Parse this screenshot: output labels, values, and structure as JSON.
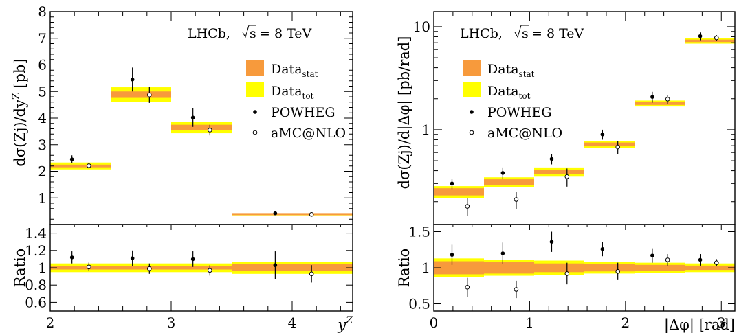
{
  "colors": {
    "stat": "#f79a3c",
    "tot": "#ffff00",
    "points": "#000000"
  },
  "legend": {
    "experiment": "LHCb,",
    "energy_prefix": "s",
    "energy_value": "= 8 TeV",
    "entries": [
      {
        "label": "Data",
        "sub": "stat",
        "style": "stat-box"
      },
      {
        "label": "Data",
        "sub": "tot",
        "style": "tot-box"
      },
      {
        "label": "POWHEG",
        "sub": "",
        "style": "filled-marker"
      },
      {
        "label": "aMC@NLO",
        "sub": "",
        "style": "open-marker"
      }
    ]
  },
  "chart_data": [
    {
      "type": "scatter",
      "panel": "left",
      "xlabel": "y",
      "xlabel_sup": "Z",
      "ylabel": "dσ(Zj)/dy",
      "ylabel_sup": "Z",
      "ylabel_unit": "[pb]",
      "ratio_ylabel": "Ratio",
      "xlim": [
        2.0,
        4.5
      ],
      "ylim": [
        0,
        8
      ],
      "yscale": "linear",
      "ratio_ylim": [
        0.5,
        1.5
      ],
      "x_ticks": [
        "2",
        "3",
        "4"
      ],
      "y_ticks": [
        "1",
        "2",
        "3",
        "4",
        "5",
        "6",
        "7",
        "8"
      ],
      "ratio_ticks": [
        "0.6",
        "0.8",
        "1",
        "1.2",
        "1.4"
      ],
      "bins": [
        [
          2.0,
          2.5
        ],
        [
          2.5,
          3.0
        ],
        [
          3.0,
          3.5
        ],
        [
          3.5,
          4.5
        ]
      ],
      "data": {
        "values": [
          2.2,
          4.88,
          3.65,
          0.39
        ],
        "stat_err": [
          0.05,
          0.12,
          0.1,
          0.02
        ],
        "tot_err": [
          0.13,
          0.28,
          0.22,
          0.03
        ]
      },
      "series": [
        {
          "name": "POWHEG",
          "marker": "filled",
          "x": [
            2.18,
            2.68,
            3.18,
            3.86
          ],
          "values": [
            2.45,
            5.45,
            4.02,
            0.42
          ],
          "err": [
            0.15,
            0.45,
            0.35,
            0.02
          ]
        },
        {
          "name": "aMC@NLO",
          "marker": "open",
          "x": [
            2.32,
            2.82,
            3.32,
            4.16
          ],
          "values": [
            2.21,
            4.87,
            3.55,
            0.38
          ],
          "err": [
            0.1,
            0.3,
            0.2,
            0.02
          ]
        }
      ],
      "ratio": {
        "data_stat_err": [
          0.02,
          0.02,
          0.02,
          0.04
        ],
        "data_tot_err": [
          0.05,
          0.05,
          0.05,
          0.07
        ],
        "series": [
          {
            "name": "POWHEG",
            "values": [
              1.12,
              1.11,
              1.1,
              1.03
            ],
            "err": [
              0.07,
              0.09,
              0.09,
              0.16
            ]
          },
          {
            "name": "aMC@NLO",
            "values": [
              1.01,
              0.99,
              0.97,
              0.93
            ],
            "err": [
              0.05,
              0.06,
              0.06,
              0.1
            ]
          }
        ]
      }
    },
    {
      "type": "scatter",
      "panel": "right",
      "xlabel": "|Δφ| [rad]",
      "ylabel": "dσ(Zj)/d|Δφ| [pb/rad]",
      "ratio_ylabel": "Ratio",
      "xlim": [
        0,
        3.1416
      ],
      "ylim": [
        0.12,
        14
      ],
      "yscale": "log",
      "ratio_ylim": [
        0.4,
        1.6
      ],
      "x_ticks": [
        "0",
        "1",
        "2",
        "3"
      ],
      "y_ticks": [
        "1",
        "10"
      ],
      "ratio_ticks": [
        "0.5",
        "1",
        "1.5"
      ],
      "bins": [
        [
          0,
          0.5236
        ],
        [
          0.5236,
          1.0472
        ],
        [
          1.0472,
          1.5708
        ],
        [
          1.5708,
          2.0944
        ],
        [
          2.0944,
          2.618
        ],
        [
          2.618,
          3.1416
        ]
      ],
      "data": {
        "values": [
          0.25,
          0.31,
          0.39,
          0.72,
          1.8,
          7.3
        ],
        "stat_err": [
          0.02,
          0.02,
          0.02,
          0.03,
          0.06,
          0.2
        ],
        "tot_err": [
          0.033,
          0.035,
          0.04,
          0.06,
          0.12,
          0.45
        ]
      },
      "series": [
        {
          "name": "POWHEG",
          "marker": "filled",
          "x": [
            0.19,
            0.72,
            1.23,
            1.76,
            2.28,
            2.78
          ],
          "values": [
            0.3,
            0.38,
            0.52,
            0.9,
            2.08,
            8.1
          ],
          "err": [
            0.035,
            0.05,
            0.06,
            0.1,
            0.25,
            0.7
          ]
        },
        {
          "name": "aMC@NLO",
          "marker": "open",
          "x": [
            0.35,
            0.86,
            1.39,
            1.92,
            2.44,
            2.95
          ],
          "values": [
            0.18,
            0.21,
            0.35,
            0.68,
            1.98,
            7.8
          ],
          "err": [
            0.035,
            0.04,
            0.07,
            0.1,
            0.2,
            0.5
          ]
        }
      ],
      "ratio": {
        "data_stat_err": [
          0.09,
          0.08,
          0.06,
          0.05,
          0.04,
          0.03
        ],
        "data_tot_err": [
          0.13,
          0.11,
          0.1,
          0.08,
          0.07,
          0.06
        ],
        "series": [
          {
            "name": "POWHEG",
            "values": [
              1.18,
              1.2,
              1.36,
              1.26,
              1.17,
              1.11
            ],
            "err": [
              0.14,
              0.15,
              0.14,
              0.1,
              0.1,
              0.08
            ]
          },
          {
            "name": "aMC@NLO",
            "values": [
              0.73,
              0.7,
              0.92,
              0.95,
              1.11,
              1.07
            ],
            "err": [
              0.13,
              0.12,
              0.15,
              0.12,
              0.08,
              0.05
            ]
          }
        ]
      }
    }
  ]
}
